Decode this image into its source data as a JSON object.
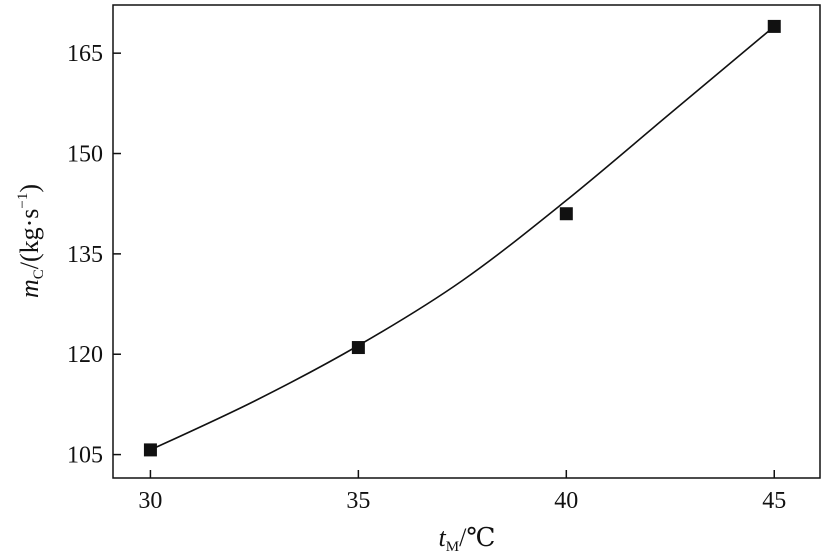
{
  "chart_data": {
    "type": "scatter",
    "title": "",
    "xlabel": {
      "main": "t",
      "sub": "M",
      "unit": "/℃"
    },
    "ylabel": {
      "main": "m",
      "sub": "C",
      "unit_open": "/(kg·s",
      "sup": "−1",
      "unit_close": ")"
    },
    "xlim": [
      29.1,
      46.1
    ],
    "ylim": [
      101.5,
      172.2
    ],
    "xticks": [
      30,
      35,
      40,
      45
    ],
    "yticks": [
      105,
      120,
      135,
      150,
      165
    ],
    "grid": false,
    "legend": "none",
    "series": [
      {
        "marker": "square",
        "color": "#111111",
        "x": [
          30,
          35,
          40,
          45
        ],
        "y": [
          105.7,
          121.0,
          141.0,
          169.0
        ]
      }
    ],
    "fit_curve": {
      "x": [
        30,
        32.5,
        35,
        37.5,
        40,
        42.5,
        45
      ],
      "y": [
        105.7,
        113.0,
        121.3,
        131.0,
        143.0,
        156.0,
        169.0
      ],
      "color": "#111111"
    }
  }
}
